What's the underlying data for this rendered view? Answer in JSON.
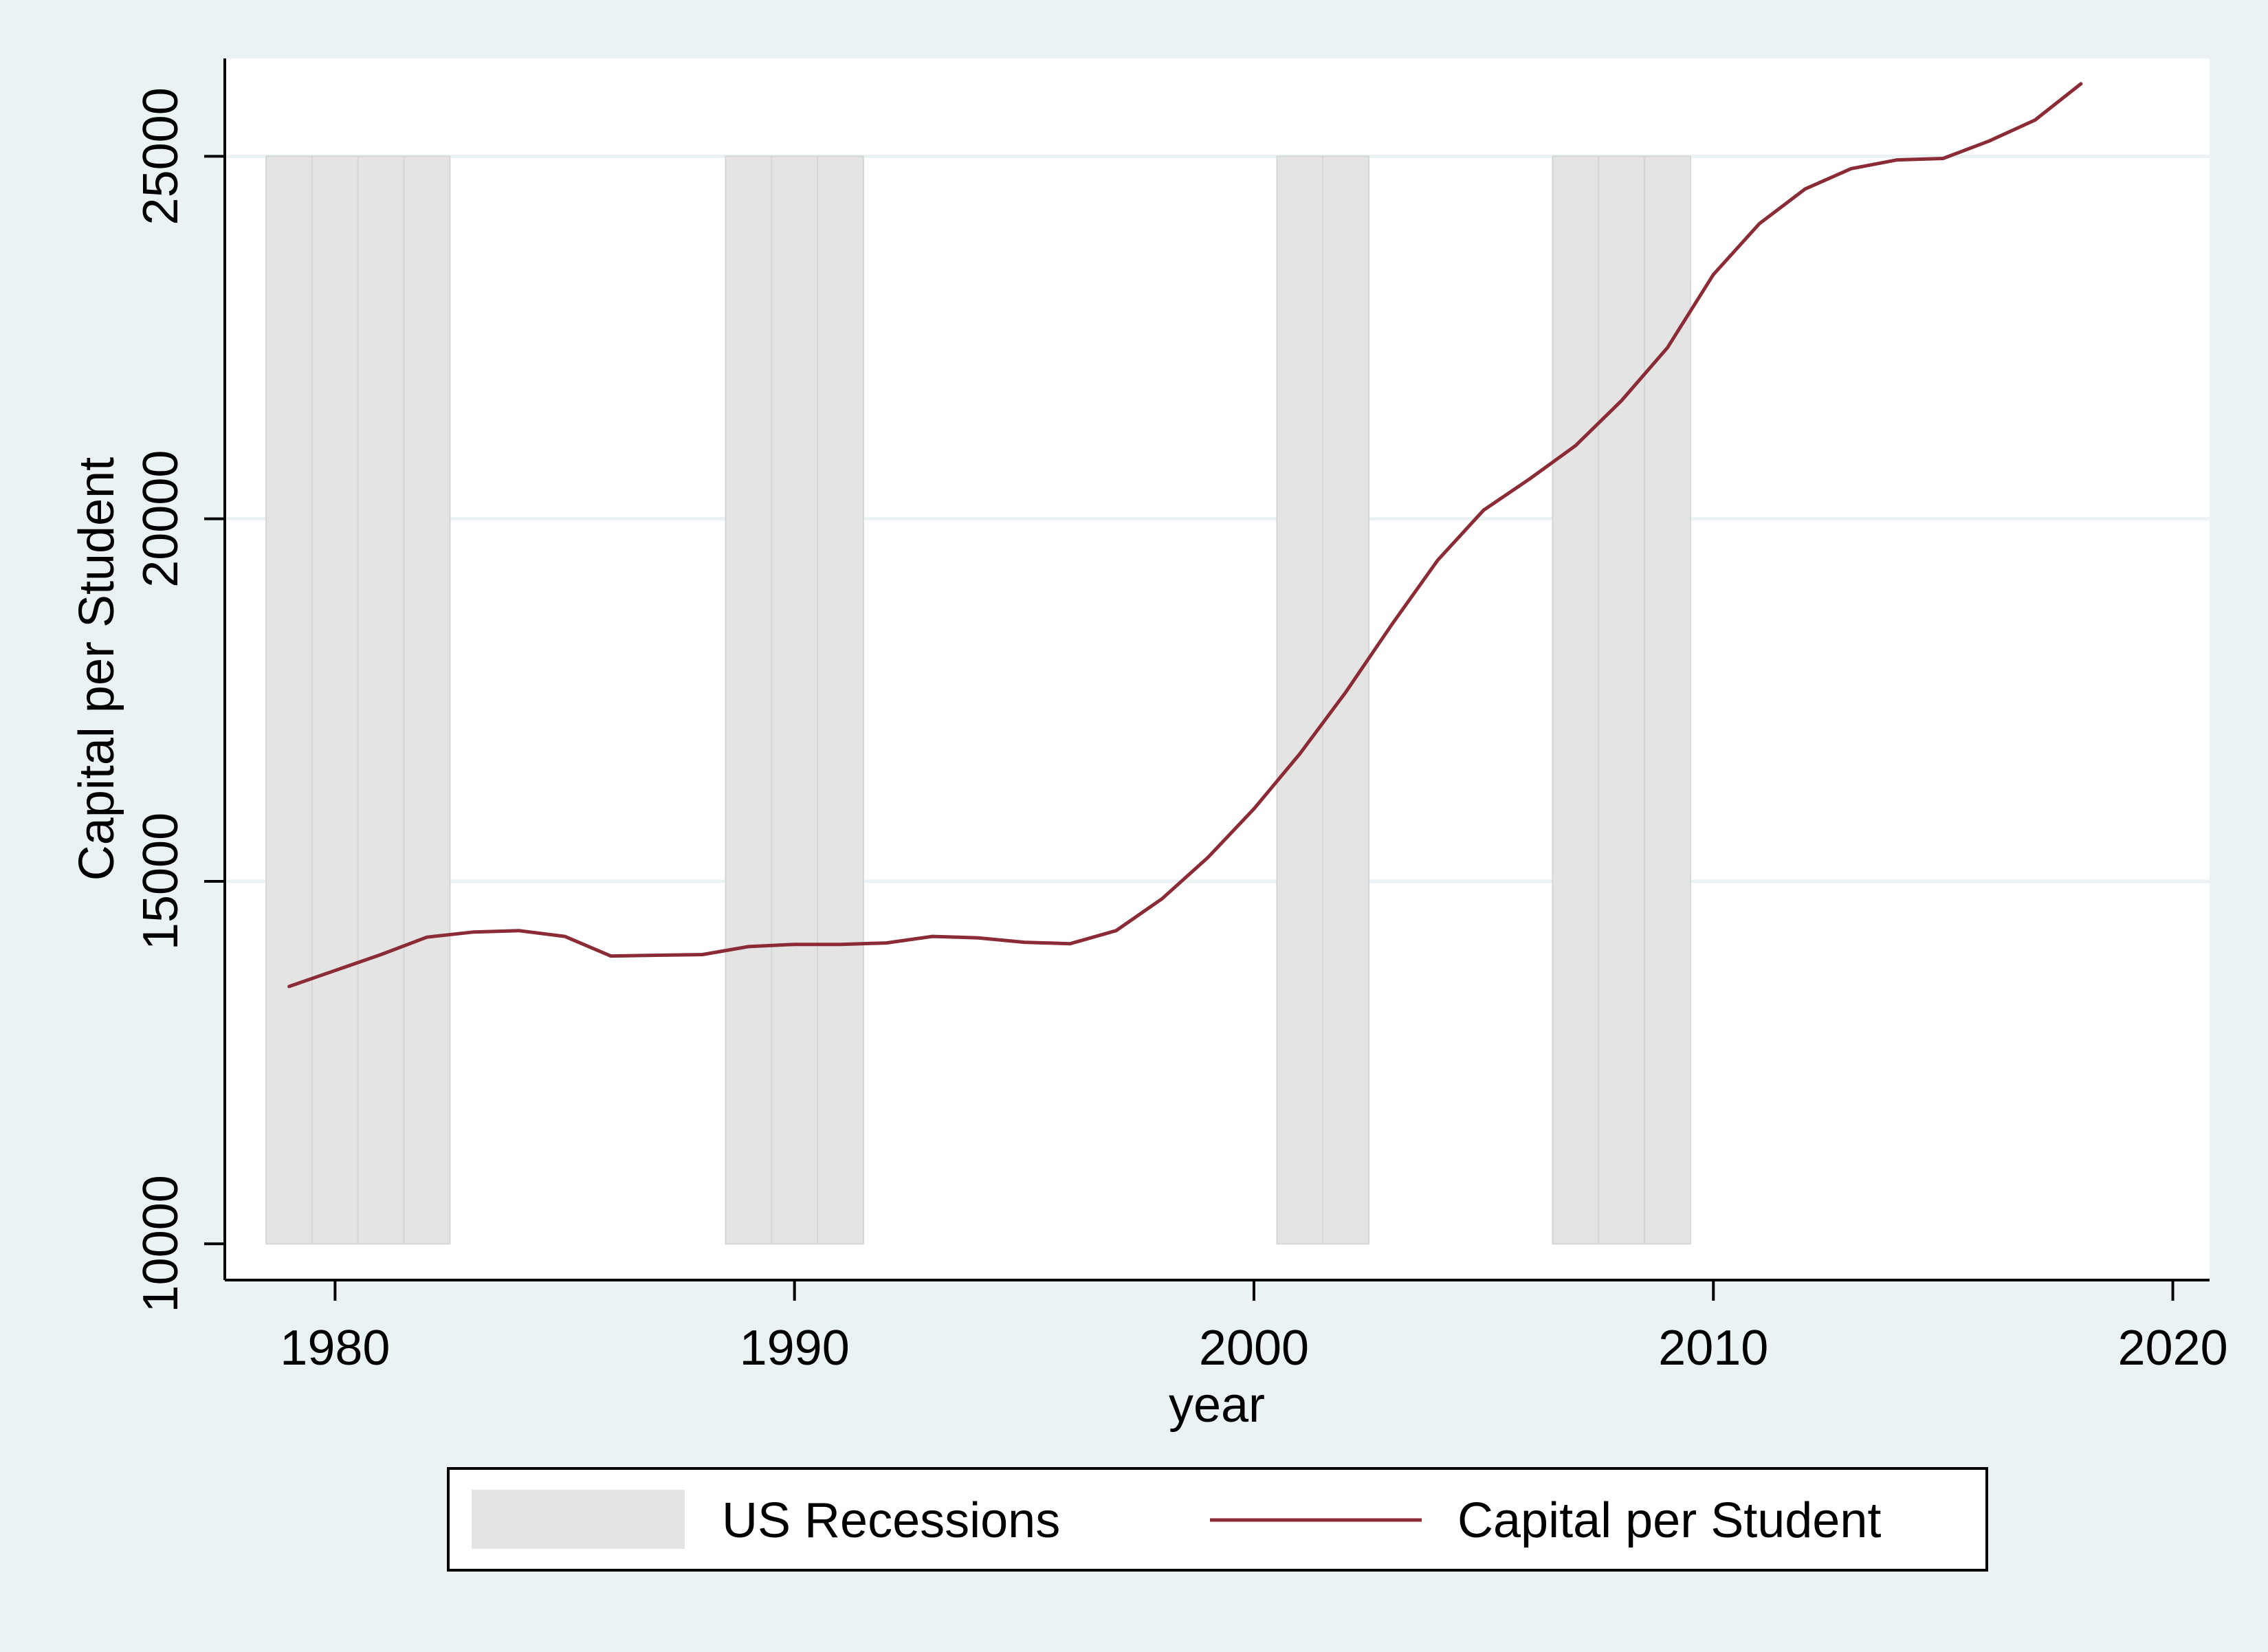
{
  "chart_data": {
    "type": "line",
    "xlabel": "year",
    "ylabel": "Capital per Student",
    "xlim": [
      1977.6,
      2020.8
    ],
    "ylim": [
      9500,
      26350
    ],
    "xticks": [
      1980,
      1990,
      2000,
      2010,
      2020
    ],
    "yticks": [
      10000,
      15000,
      20000,
      25000
    ],
    "x_tick_labels": [
      "1980",
      "1990",
      "2000",
      "2010",
      "2020"
    ],
    "y_tick_labels": [
      "10000",
      "15000",
      "20000",
      "25000"
    ],
    "grid": "horizontal",
    "legend": {
      "placement": "bottom",
      "entries": [
        "US Recessions",
        "Capital per Student"
      ]
    },
    "recession_band": {
      "name": "US Recessions",
      "low": 10000,
      "high": 25000,
      "color": "#e4e4e4",
      "bars": [
        {
          "start": 1978.5,
          "end": 1979.5
        },
        {
          "start": 1979.5,
          "end": 1980.5
        },
        {
          "start": 1980.5,
          "end": 1981.5
        },
        {
          "start": 1981.5,
          "end": 1982.5
        },
        {
          "start": 1988.5,
          "end": 1989.5
        },
        {
          "start": 1989.5,
          "end": 1990.5
        },
        {
          "start": 1990.5,
          "end": 1991.5
        },
        {
          "start": 2000.5,
          "end": 2001.5
        },
        {
          "start": 2001.5,
          "end": 2002.5
        },
        {
          "start": 2006.5,
          "end": 2007.5
        },
        {
          "start": 2007.5,
          "end": 2008.5
        },
        {
          "start": 2008.5,
          "end": 2009.5
        }
      ]
    },
    "series": [
      {
        "name": "Capital per Student",
        "color": "#8b2b35",
        "x": [
          1979,
          1980,
          1981,
          1982,
          1983,
          1984,
          1985,
          1986,
          1987,
          1988,
          1989,
          1990,
          1991,
          1992,
          1993,
          1994,
          1995,
          1996,
          1997,
          1998,
          1999,
          2000,
          2001,
          2002,
          2003,
          2004,
          2005,
          2006,
          2007,
          2008,
          2009,
          2010,
          2011,
          2012,
          2013,
          2014,
          2015,
          2016,
          2017,
          2018
        ],
        "values": [
          13550,
          13770,
          13990,
          14230,
          14300,
          14320,
          14240,
          13970,
          13980,
          13990,
          14100,
          14130,
          14130,
          14150,
          14240,
          14220,
          14160,
          14140,
          14320,
          14760,
          15330,
          16000,
          16760,
          17610,
          18540,
          19430,
          20120,
          20550,
          21010,
          21630,
          22360,
          23370,
          24070,
          24550,
          24830,
          24950,
          24970,
          25210,
          25500,
          26000
        ]
      }
    ]
  }
}
